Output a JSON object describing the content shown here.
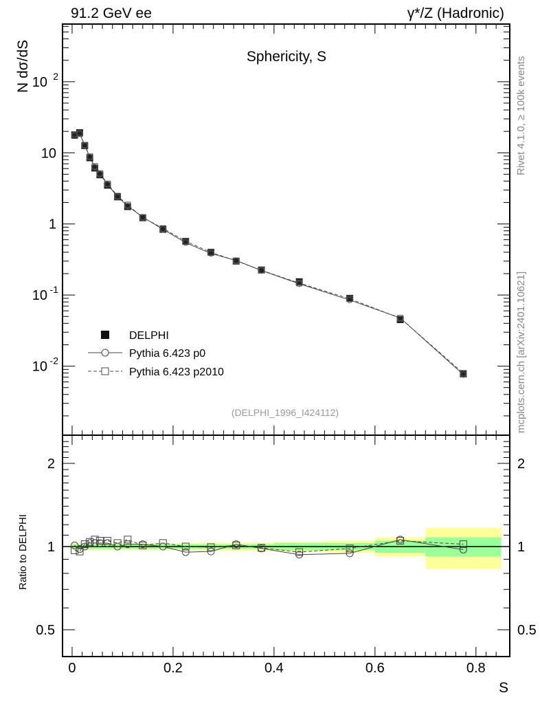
{
  "header": {
    "left": "91.2 GeV ee",
    "right": "γ*/Z (Hadronic)"
  },
  "side_labels": {
    "top": "Rivet 4.1.0, ≥ 100k events",
    "bottom": "mcplots.cern.ch [arXiv:2401.10621]"
  },
  "chart_data": [
    {
      "type": "scatter",
      "title": "Sphericity, S",
      "ylabel": "N  dσ/dS",
      "xlabel": "S",
      "yscale": "log",
      "ylim": [
        0.00107,
        646
      ],
      "xlim": [
        -0.019,
        0.867
      ],
      "yticks": [
        {
          "v": 0.01,
          "label": "10",
          "exp": "-2"
        },
        {
          "v": 0.1,
          "label": "10",
          "exp": "-1"
        },
        {
          "v": 1,
          "label": "1"
        },
        {
          "v": 10,
          "label": "10"
        },
        {
          "v": 100,
          "label": "10",
          "exp": "2"
        }
      ],
      "annotation": "(DELPHI_1996_I424112)",
      "legend": {
        "placement": "bottom-left",
        "entries": [
          "DELPHI",
          "Pythia 6.423 p0",
          "Pythia 6.423 p2010"
        ]
      },
      "bins": [
        [
          0,
          0.01
        ],
        [
          0.01,
          0.02
        ],
        [
          0.02,
          0.03
        ],
        [
          0.03,
          0.04
        ],
        [
          0.04,
          0.05
        ],
        [
          0.05,
          0.06
        ],
        [
          0.06,
          0.08
        ],
        [
          0.08,
          0.1
        ],
        [
          0.1,
          0.12
        ],
        [
          0.12,
          0.16
        ],
        [
          0.16,
          0.2
        ],
        [
          0.2,
          0.25
        ],
        [
          0.25,
          0.3
        ],
        [
          0.3,
          0.35
        ],
        [
          0.35,
          0.4
        ],
        [
          0.4,
          0.5
        ],
        [
          0.5,
          0.6
        ],
        [
          0.6,
          0.7
        ],
        [
          0.7,
          0.85
        ]
      ],
      "x": [
        0.005,
        0.015,
        0.025,
        0.035,
        0.045,
        0.055,
        0.07,
        0.09,
        0.11,
        0.14,
        0.18,
        0.225,
        0.275,
        0.325,
        0.375,
        0.45,
        0.55,
        0.65,
        0.775
      ],
      "series": [
        {
          "name": "DELPHI",
          "values": [
            17.9,
            19.2,
            12.6,
            8.5,
            6.1,
            4.9,
            3.5,
            2.4,
            1.75,
            1.22,
            0.84,
            0.57,
            0.4,
            0.3,
            0.225,
            0.154,
            0.09,
            0.045,
            0.0078
          ]
        }
      ]
    },
    {
      "type": "line",
      "ylabel": "Ratio to DELPHI",
      "xlabel": "S",
      "yscale": "log",
      "ylim": [
        0.4,
        2.53
      ],
      "yticks": [
        {
          "v": 0.5,
          "label": "0.5"
        },
        {
          "v": 1,
          "label": "1"
        },
        {
          "v": 2,
          "label": "2"
        }
      ],
      "xticks": [
        "0",
        "0.2",
        "0.4",
        "0.6",
        "0.8"
      ],
      "band_inner": [
        0.02,
        0.02,
        0.02,
        0.02,
        0.02,
        0.02,
        0.02,
        0.02,
        0.02,
        0.02,
        0.02,
        0.02,
        0.02,
        0.02,
        0.02,
        0.03,
        0.03,
        0.05,
        0.08
      ],
      "band_outer": [
        0.03,
        0.03,
        0.03,
        0.03,
        0.03,
        0.03,
        0.03,
        0.03,
        0.03,
        0.03,
        0.03,
        0.03,
        0.035,
        0.035,
        0.035,
        0.04,
        0.05,
        0.08,
        0.17
      ],
      "series": [
        {
          "name": "Pythia 6.423 p0",
          "values": [
            1.01,
            0.98,
            1.0,
            1.03,
            1.03,
            1.03,
            1.03,
            1.0,
            1.02,
            1.02,
            1.0,
            0.955,
            0.96,
            1.02,
            0.985,
            0.935,
            0.945,
            1.06,
            0.975
          ]
        },
        {
          "name": "Pythia 6.423 p2010",
          "values": [
            0.97,
            0.96,
            1.02,
            1.04,
            1.06,
            1.05,
            1.05,
            1.03,
            1.06,
            1.01,
            1.03,
            1.0,
            0.995,
            1.01,
            0.99,
            0.955,
            0.985,
            1.05,
            1.02
          ]
        }
      ]
    }
  ]
}
